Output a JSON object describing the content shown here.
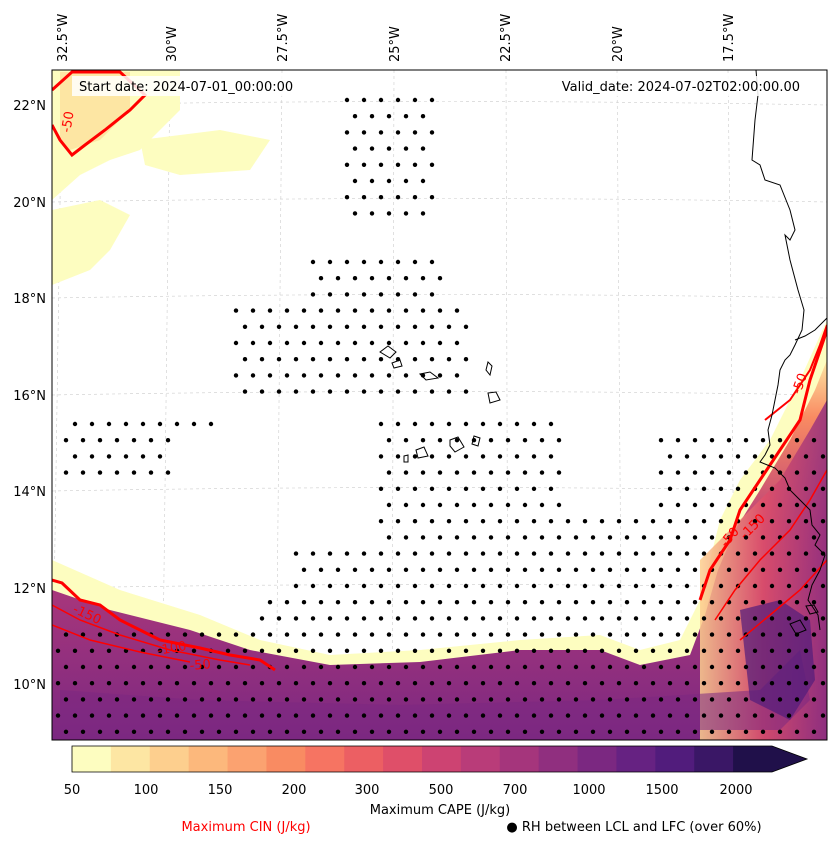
{
  "map": {
    "start_date": "Start date: 2024-07-01_00:00:00",
    "valid_date": "Valid_date: 2024-07-02T02:00:00.00",
    "lon_labels": [
      "32.5°W",
      "30°W",
      "27.5°W",
      "25°W",
      "22.5°W",
      "20°W",
      "17.5°W"
    ],
    "lat_labels": [
      "22°N",
      "20°N",
      "18°N",
      "16°N",
      "14°N",
      "12°N",
      "10°N"
    ],
    "cin_contour_labels": [
      "-50",
      "-150",
      "-100",
      "-50",
      "-50",
      "-150",
      "-50"
    ]
  },
  "colorbar": {
    "tick_labels": [
      "50",
      "100",
      "150",
      "200",
      "300",
      "500",
      "700",
      "1000",
      "1500",
      "2000"
    ],
    "colors": [
      "#fdfdc0",
      "#fde6a3",
      "#fdcf8e",
      "#fcb87c",
      "#fba270",
      "#f98b62",
      "#f67462",
      "#ec5f63",
      "#df4f69",
      "#cd4372",
      "#b93c79",
      "#a5357c",
      "#902f7f",
      "#7b2881",
      "#662282",
      "#511c7c",
      "#3a1766",
      "#20104a"
    ],
    "label": "Maximum CAPE (J/kg)"
  },
  "legend": {
    "cin_label": "Maximum CIN (J/kg)",
    "rh_label": "● RH between LCL and LFC (over 60%)"
  },
  "colors": {
    "cin_contour": "#ff0000",
    "coastline": "#000000",
    "gridline": "#cccccc"
  }
}
